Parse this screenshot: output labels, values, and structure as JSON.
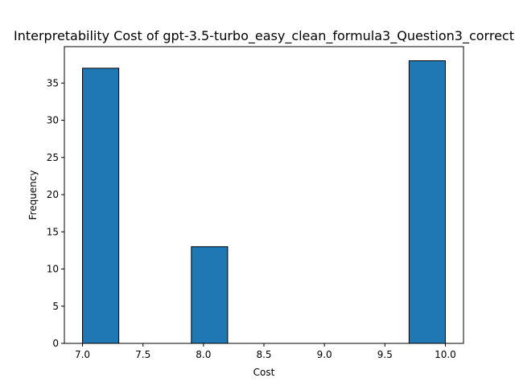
{
  "chart_data": {
    "type": "histogram",
    "title": "Interpretability Cost of gpt-3.5-turbo_easy_clean_formula3_Question3_correct",
    "xlabel": "Cost",
    "ylabel": "Frequency",
    "xlim": [
      6.85,
      10.15
    ],
    "ylim": [
      0,
      39.9
    ],
    "x_ticks": [
      "7.0",
      "7.5",
      "8.0",
      "8.5",
      "9.0",
      "9.5",
      "10.0"
    ],
    "y_ticks": [
      "0",
      "5",
      "10",
      "15",
      "20",
      "25",
      "30",
      "35"
    ],
    "bins": [
      {
        "start": 7.0,
        "end": 7.3,
        "count": 37
      },
      {
        "start": 7.3,
        "end": 7.6,
        "count": 0
      },
      {
        "start": 7.6,
        "end": 7.9,
        "count": 0
      },
      {
        "start": 7.9,
        "end": 8.2,
        "count": 13
      },
      {
        "start": 8.2,
        "end": 8.5,
        "count": 0
      },
      {
        "start": 8.5,
        "end": 8.8,
        "count": 0
      },
      {
        "start": 8.8,
        "end": 9.1,
        "count": 0
      },
      {
        "start": 9.1,
        "end": 9.4,
        "count": 0
      },
      {
        "start": 9.4,
        "end": 9.7,
        "count": 0
      },
      {
        "start": 9.7,
        "end": 10.0,
        "count": 38
      }
    ],
    "bar_color": "#1f77b4",
    "edge_color": "#000000",
    "grid": false,
    "legend": "none"
  }
}
